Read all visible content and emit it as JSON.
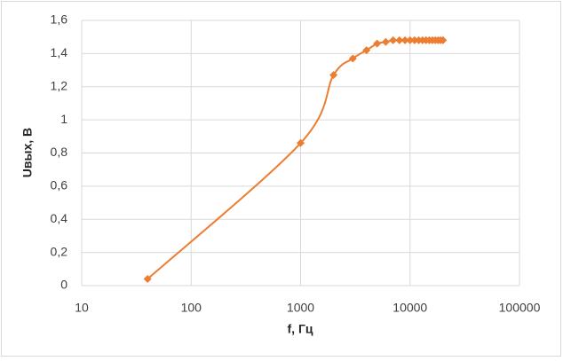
{
  "chart_data": {
    "type": "line",
    "x_label": "f, Гц",
    "y_label": "Uвых, В",
    "x": [
      40,
      1000,
      2000,
      3000,
      4000,
      5000,
      6000,
      7000,
      8000,
      9000,
      10000,
      11000,
      12000,
      13000,
      14000,
      15000,
      16000,
      17000,
      18000,
      19000,
      20000
    ],
    "series": [
      {
        "color": "#ed7d31",
        "values": [
          0.04,
          0.86,
          1.27,
          1.37,
          1.42,
          1.46,
          1.47,
          1.48,
          1.48,
          1.48,
          1.48,
          1.48,
          1.48,
          1.48,
          1.48,
          1.48,
          1.48,
          1.48,
          1.48,
          1.48,
          1.48
        ]
      }
    ],
    "xscale": "log",
    "xlim": [
      10,
      100000
    ],
    "xticks": [
      10,
      100,
      1000,
      10000,
      100000
    ],
    "ylim": [
      0,
      1.6
    ],
    "yticks": [
      0,
      {
        "value": 0.2,
        "label": "0,2"
      },
      {
        "value": 0.4,
        "label": "0,4"
      },
      {
        "value": 0.6,
        "label": "0,6"
      },
      {
        "value": 0.8,
        "label": "0,8"
      },
      1,
      {
        "value": 1.2,
        "label": "1,2"
      },
      {
        "value": 1.4,
        "label": "1,4"
      },
      {
        "value": 1.6,
        "label": "1,6"
      }
    ],
    "grid": true,
    "smooth": true
  }
}
